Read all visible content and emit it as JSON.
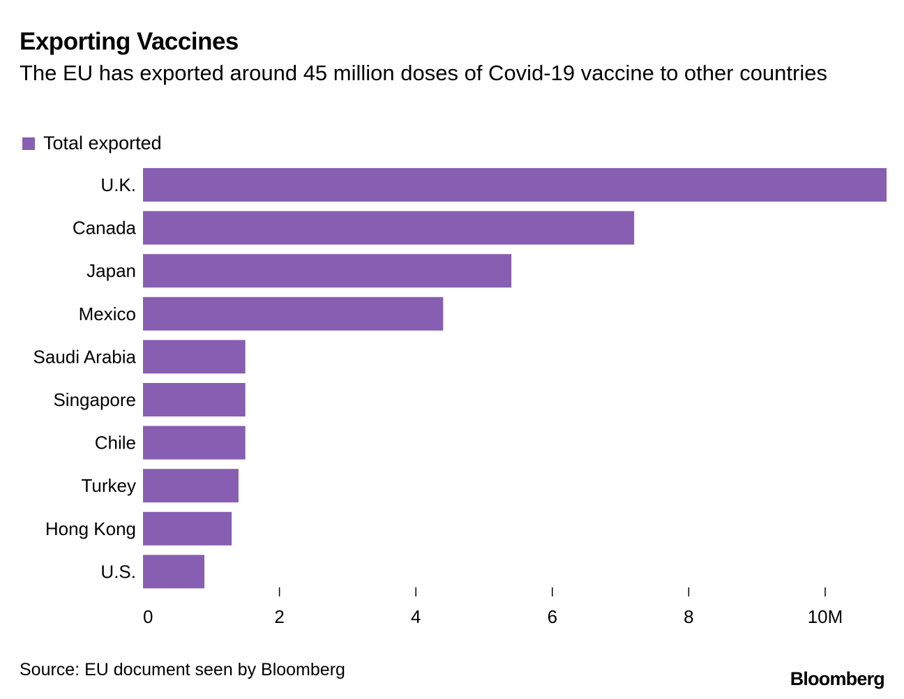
{
  "header": {
    "title": "Exporting Vaccines",
    "subtitle": "The EU has exported around 45 million doses of Covid-19 vaccine to other countries"
  },
  "legend": {
    "label": "Total exported"
  },
  "colors": {
    "bar": "#875EB1",
    "text": "#000000",
    "tick": "#000000"
  },
  "footer": {
    "source": "Source: EU document seen by Bloomberg",
    "brand": "Bloomberg"
  },
  "chart_data": {
    "type": "bar",
    "orientation": "horizontal",
    "title": "Exporting Vaccines",
    "subtitle": "The EU has exported around 45 million doses of Covid-19 vaccine to other countries",
    "xlabel": "",
    "ylabel": "",
    "categories": [
      "U.K.",
      "Canada",
      "Japan",
      "Mexico",
      "Saudi Arabia",
      "Singapore",
      "Chile",
      "Turkey",
      "Hong Kong",
      "U.S."
    ],
    "series": [
      {
        "name": "Total exported",
        "values": [
          10.9,
          7.2,
          5.4,
          4.4,
          1.5,
          1.5,
          1.5,
          1.4,
          1.3,
          0.9
        ]
      }
    ],
    "xlim": [
      0,
      10.9
    ],
    "ticks": [
      0,
      2,
      4,
      6,
      8,
      10
    ],
    "tick_labels": [
      "0",
      "2",
      "4",
      "6",
      "8",
      "10M"
    ],
    "grid": false,
    "legend_position": "top-left"
  }
}
